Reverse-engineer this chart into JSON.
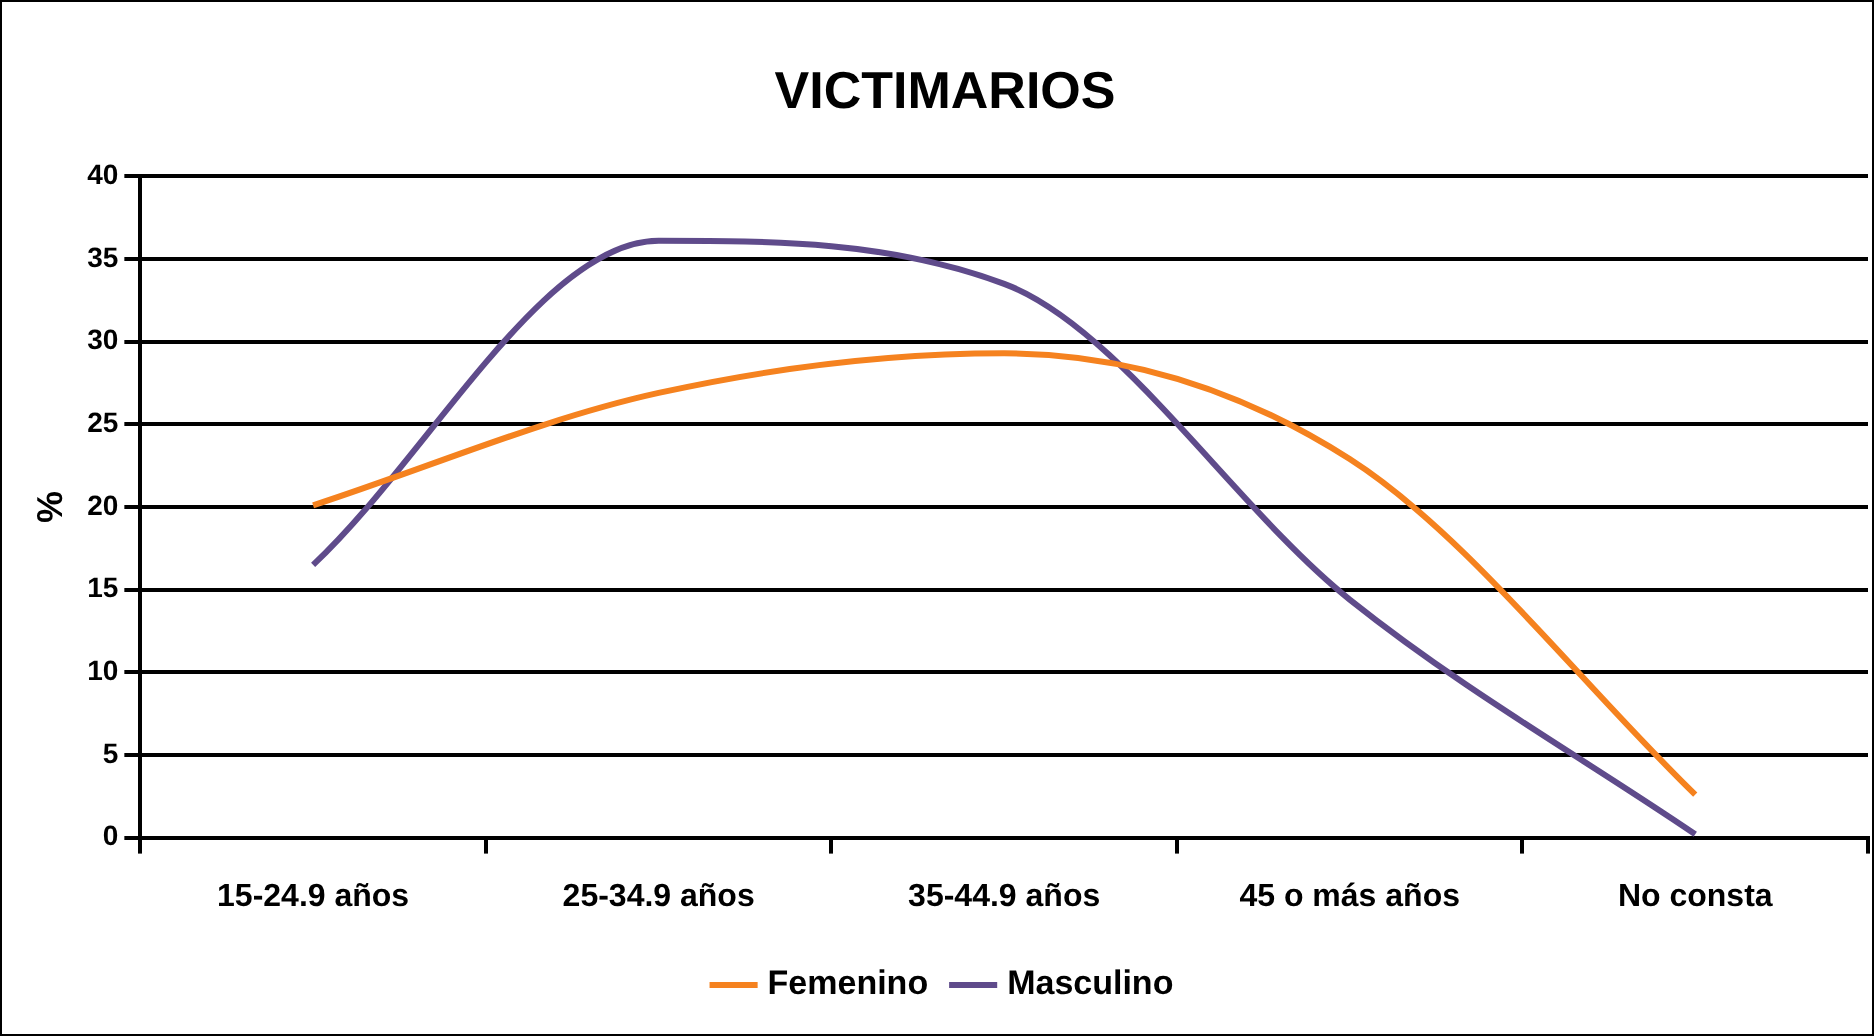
{
  "chart_data": {
    "type": "line",
    "title": "VICTIMARIOS",
    "ylabel": "%",
    "categories": [
      "15-24.9 años",
      "25-34.9 años",
      "35-44.9 años",
      "45 o más años",
      "No consta"
    ],
    "series": [
      {
        "name": "Femenino",
        "color": "#f5821f",
        "values": [
          20.1,
          26.9,
          29.3,
          22.9,
          2.6
        ]
      },
      {
        "name": "Masculino",
        "color": "#5f4b8b",
        "values": [
          16.5,
          36.1,
          33.5,
          14.4,
          0.2
        ]
      }
    ],
    "ylim": [
      0,
      40
    ],
    "yticks": [
      0,
      5,
      10,
      15,
      20,
      25,
      30,
      35,
      40
    ],
    "grid": "y",
    "legend": "bottom",
    "marker": "none",
    "line_style": "solid"
  }
}
